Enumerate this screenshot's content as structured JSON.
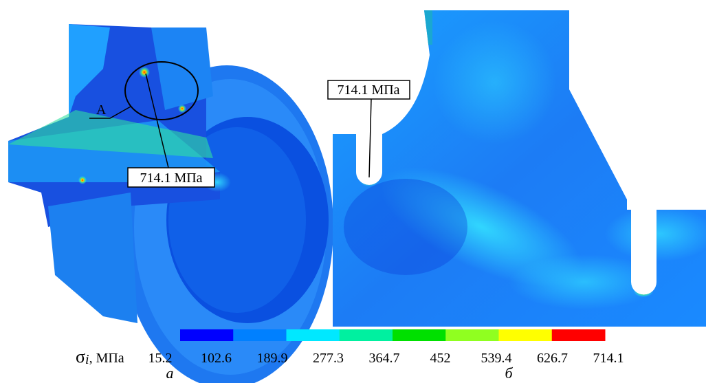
{
  "panel_a": {
    "detail_label": "А",
    "callout": "714.1 МПа",
    "caption": "а"
  },
  "panel_b": {
    "callout": "714.1 МПа",
    "caption": "б"
  },
  "colorbar": {
    "symbol": "σ",
    "subscript": "i",
    "unit": ", МПа",
    "ticks": [
      15.2,
      102.6,
      189.9,
      277.3,
      364.7,
      452,
      539.4,
      626.7,
      714.1
    ],
    "colors": [
      "#0000ff",
      "#0080ff",
      "#00e8ff",
      "#00f0a0",
      "#00e000",
      "#90ff20",
      "#ffff00",
      "#ff0000"
    ]
  }
}
